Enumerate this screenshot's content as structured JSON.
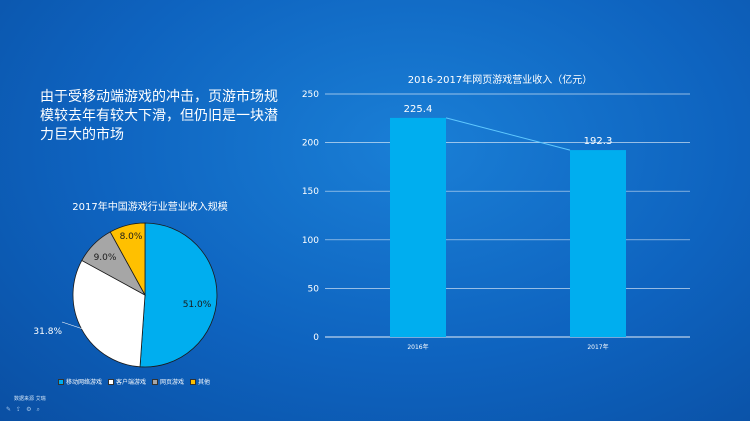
{
  "headline": "由于受移动端游戏的冲击，页游市场规模较去年有较大下滑，但仍旧是一块潜力巨大的市场",
  "source": "数据来源 艾瑞",
  "colors": {
    "bar": "#00aeef",
    "mobile": "#00aeef",
    "client": "#ffffff",
    "web": "#a6a6a6",
    "other": "#ffc000"
  },
  "chart_data": [
    {
      "type": "pie",
      "title": "2017年中国游戏行业营业收入规模",
      "categories": [
        "移动网络游戏",
        "客户端游戏",
        "网页游戏",
        "其他"
      ],
      "values": [
        51.0,
        31.8,
        9.0,
        8.0
      ],
      "labels": [
        "51.0%",
        "31.8%",
        "9.0%",
        "8.0%"
      ],
      "legend_position": "bottom"
    },
    {
      "type": "bar",
      "title": "2016-2017年网页游戏营业收入（亿元）",
      "categories": [
        "2016年",
        "2017年"
      ],
      "values": [
        225.4,
        192.3
      ],
      "labels": [
        "225.4",
        "192.3"
      ],
      "ylim": [
        0,
        250
      ],
      "yticks": [
        "0",
        "50",
        "100",
        "150",
        "200",
        "250"
      ],
      "grid": true,
      "trend_line": true
    }
  ],
  "toolbar_icons": [
    "pen-icon",
    "share-icon",
    "settings-icon",
    "zoom-icon"
  ]
}
